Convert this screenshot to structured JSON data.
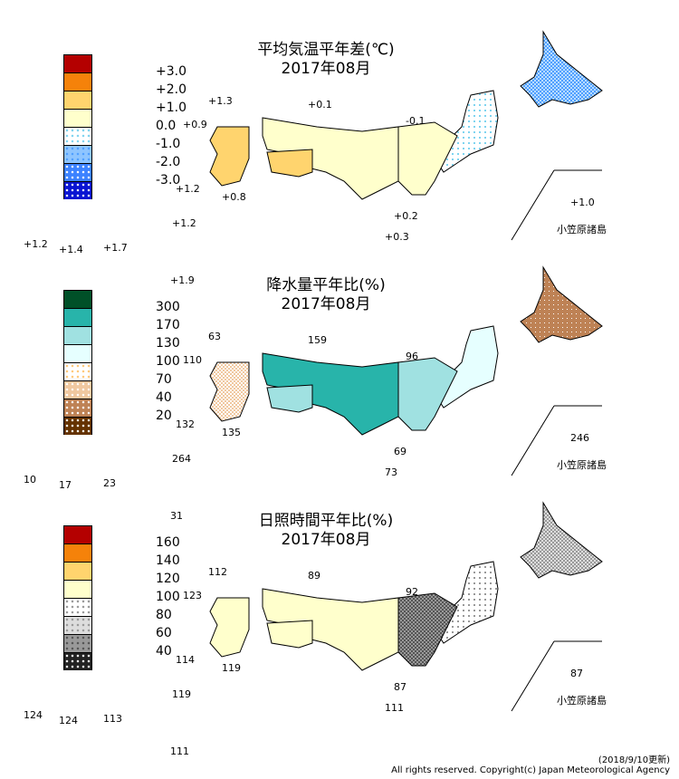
{
  "panels": [
    {
      "title": "平均気温平年差(℃)",
      "period": "2017年08月",
      "legend": {
        "colors": [
          "#b40000",
          "#f5820a",
          "#ffd46e",
          "#ffffcc",
          "#ffffff|#7fd4f0",
          "#8ec5ff|#4f9fff",
          "#3c82ff|#ffffff",
          "#0a14d2|#ffffff"
        ],
        "labels": [
          "+3.0",
          "+2.0",
          "+1.0",
          "0.0",
          "-1.0",
          "-2.0",
          "-3.0"
        ]
      },
      "stations": [
        "+1.3",
        "+0.1",
        "-0.1",
        "+0.9",
        "+1.2",
        "+0.8",
        "+1.0",
        "+0.2",
        "+1.2",
        "+0.3",
        "+1.2",
        "+1.4",
        "+1.7",
        "+1.9"
      ]
    },
    {
      "title": "降水量平年比(%)",
      "period": "2017年08月",
      "legend": {
        "colors": [
          "#005028",
          "#28b4aa",
          "#a0e1e1",
          "#e6ffff",
          "#ffffff|#ffc878",
          "#f0c8a0|#ffffff",
          "#be8255|#ffffff",
          "#643200|#ffffff"
        ],
        "labels": [
          "300",
          "170",
          "130",
          "100",
          "70",
          "40",
          "20"
        ]
      },
      "stations": [
        "63",
        "159",
        "96",
        "110",
        "132",
        "135",
        "246",
        "69",
        "264",
        "73",
        "10",
        "17",
        "23",
        "31"
      ]
    },
    {
      "title": "日照時間平年比(%)",
      "period": "2017年08月",
      "legend": {
        "colors": [
          "#b40000",
          "#f5820a",
          "#ffd46e",
          "#ffffcc",
          "#ffffff|#999999",
          "#dddddd|#999999",
          "#999999|#555555",
          "#222222|#ffffff"
        ],
        "labels": [
          "160",
          "140",
          "120",
          "100",
          "80",
          "60",
          "40"
        ]
      },
      "stations": [
        "112",
        "89",
        "92",
        "123",
        "114",
        "119",
        "87",
        "87",
        "119",
        "111",
        "124",
        "124",
        "113",
        "111"
      ]
    }
  ],
  "island_label": "小笠原諸島",
  "footer": {
    "updated": "(2018/9/10更新)",
    "copyright": "All rights reserved. Copyright(c) Japan Meteorological Agency"
  }
}
